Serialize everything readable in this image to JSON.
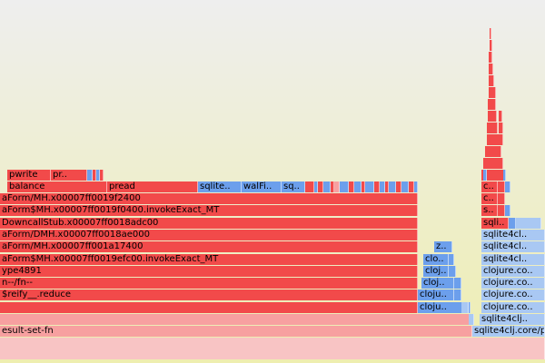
{
  "colors": {
    "red": "#f24a4a",
    "light_red": "#f7a0a0",
    "blue": "#6c9fec",
    "light_blue": "#a9c8f3",
    "pink_root": "#f8c4c4"
  },
  "frames": {
    "pwrite": "pwrite",
    "pr": "pr..",
    "balance": "balance",
    "pread": "pread",
    "sqlite_short": "sqlite..",
    "walfi": "walFi..",
    "sq": "sq..",
    "mh_f2400": "aForm/MH.x00007ff0019f2400",
    "invoke_f0400": "aForm$MH.x00007ff0019f0400.invokeExact_MT",
    "downcall": "DowncallStub.x00007ff0018adc00",
    "dmh": "aForm/DMH.x00007ff0018ae000",
    "mh_a17400": "aForm/MH.x00007ff001a17400",
    "invoke_efc00": "aForm$MH.x00007ff0019efc00.invokeExact_MT",
    "type4891": "ype4891",
    "fn": "n--/fn--",
    "reify": "$reify__.reduce",
    "result_set_fn": "esult-set-fn",
    "z": "z..",
    "cloj": "cloj..",
    "clo": "clo..",
    "cloju": "cloju..",
    "c": "c..",
    "s": "s..",
    "sqli": "sqli..",
    "sqlite4cl": "sqlite4cl..",
    "clojure_co": "clojure.co..",
    "sqlite4clj": "sqlite4clj..",
    "sqlite4clj_core": "sqlite4clj.core/p"
  }
}
